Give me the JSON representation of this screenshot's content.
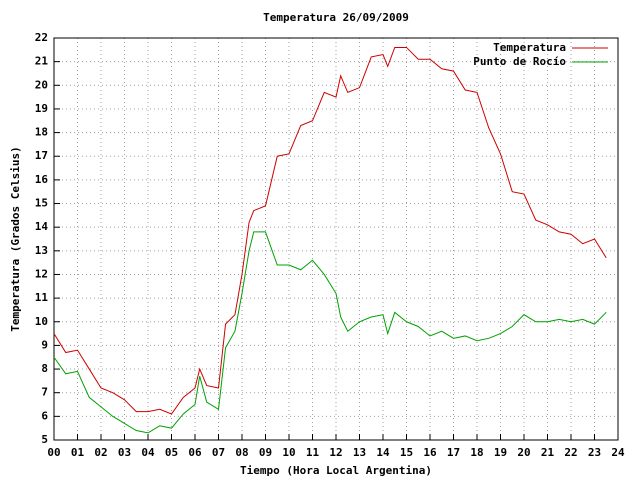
{
  "chart_data": {
    "type": "line",
    "title": "Temperatura 26/09/2009",
    "xlabel": "Tiempo (Hora Local Argentina)",
    "ylabel": "Temperatura (Grados Celsius)",
    "x": [
      0,
      0.5,
      1,
      1.5,
      2,
      2.5,
      3,
      3.5,
      4,
      4.5,
      5,
      5.5,
      6,
      6.2,
      6.5,
      7,
      7.3,
      7.7,
      8,
      8.3,
      8.5,
      9,
      9.5,
      10,
      10.5,
      11,
      11.5,
      12,
      12.2,
      12.5,
      13,
      13.5,
      14,
      14.2,
      14.5,
      15,
      15.5,
      16,
      16.5,
      17,
      17.5,
      18,
      18.5,
      19,
      19.5,
      20,
      20.5,
      21,
      21.5,
      22,
      22.5,
      23,
      23.5
    ],
    "series": [
      {
        "name": "Temperatura",
        "color": "#cc0000",
        "values": [
          9.5,
          8.7,
          8.8,
          8.0,
          7.2,
          7.0,
          6.7,
          6.2,
          6.2,
          6.3,
          6.1,
          6.8,
          7.2,
          8.0,
          7.3,
          7.2,
          9.9,
          10.3,
          12.0,
          14.2,
          14.7,
          14.9,
          17.0,
          17.1,
          18.3,
          18.5,
          19.7,
          19.5,
          20.4,
          19.7,
          19.9,
          21.2,
          21.3,
          20.8,
          21.6,
          21.6,
          21.1,
          21.1,
          20.7,
          20.6,
          19.8,
          19.7,
          18.2,
          17.1,
          15.5,
          15.4,
          14.3,
          14.1,
          13.8,
          13.7,
          13.3,
          13.5,
          12.7
        ]
      },
      {
        "name": "Punto de Rocío",
        "color": "#00a000",
        "values": [
          8.5,
          7.8,
          7.9,
          6.8,
          6.4,
          6.0,
          5.7,
          5.4,
          5.3,
          5.6,
          5.5,
          6.1,
          6.5,
          7.7,
          6.6,
          6.3,
          8.9,
          9.6,
          11.2,
          13.0,
          13.8,
          13.8,
          12.4,
          12.4,
          12.2,
          12.6,
          12.0,
          11.2,
          10.2,
          9.6,
          10.0,
          10.2,
          10.3,
          9.5,
          10.4,
          10.0,
          9.8,
          9.4,
          9.6,
          9.3,
          9.4,
          9.2,
          9.3,
          9.5,
          9.8,
          10.3,
          10.0,
          10.0,
          10.1,
          10.0,
          10.1,
          9.9,
          10.4
        ]
      }
    ],
    "xlim": [
      0,
      24
    ],
    "xticks": [
      {
        "value": 0,
        "label": "00"
      },
      {
        "value": 1,
        "label": "01"
      },
      {
        "value": 2,
        "label": "02"
      },
      {
        "value": 3,
        "label": "03"
      },
      {
        "value": 4,
        "label": "04"
      },
      {
        "value": 5,
        "label": "05"
      },
      {
        "value": 6,
        "label": "06"
      },
      {
        "value": 7,
        "label": "07"
      },
      {
        "value": 8,
        "label": "08"
      },
      {
        "value": 9,
        "label": "09"
      },
      10,
      11,
      12,
      13,
      14,
      15,
      16,
      17,
      18,
      19,
      20,
      21,
      22,
      23,
      24
    ],
    "ylim": [
      5,
      22
    ],
    "yticks": [
      5,
      6,
      7,
      8,
      9,
      10,
      11,
      12,
      13,
      14,
      15,
      16,
      17,
      18,
      19,
      20,
      21,
      22
    ],
    "grid": true,
    "legend": "top-right"
  }
}
